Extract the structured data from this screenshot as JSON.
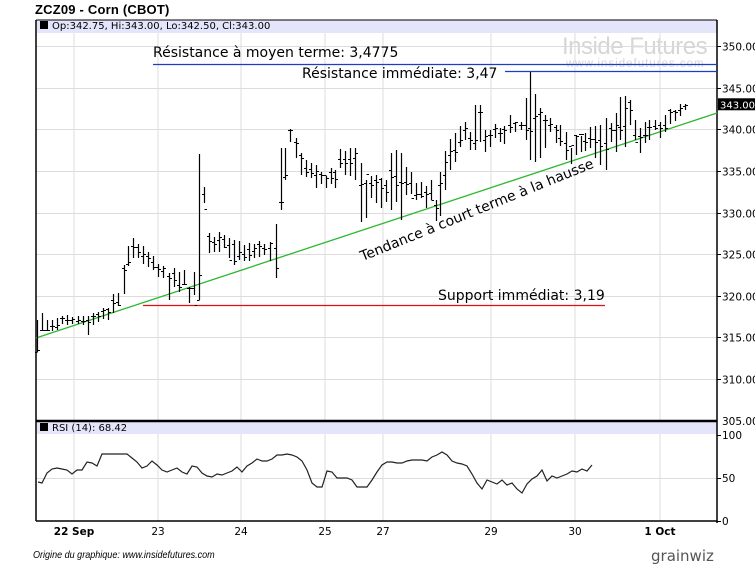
{
  "header": {
    "title": "ZCZ09 - Corn (CBOT)",
    "ohlc_label": "Op:342.75, Hi:343.00, Lo:342.50, Cl:343.00"
  },
  "watermark": {
    "brand": "Inside Futures",
    "url": "www.insidefutures.com"
  },
  "annotations": {
    "resistance_medium": "Résistance à moyen terme: 3,4775",
    "resistance_immediate": "Résistance immédiate: 3,47",
    "trend": "Tendance à court terme à la hausse",
    "support_immediate": "Support immédiat: 3,19"
  },
  "rsi": {
    "label": "RSI (14): 68.42"
  },
  "footer": {
    "source": "Origine du graphique: www.insidefutures.com",
    "logo": "grainwiz"
  },
  "colors": {
    "header_band": "#e4e4fb",
    "grid": "#dcdcdc",
    "resistance": "#1a3fc4",
    "support": "#e01010",
    "trend": "#2db82d",
    "bars": "#000000"
  },
  "chart_data": [
    {
      "type": "ohlc",
      "title": "ZCZ09 - Corn (CBOT)",
      "ylim": [
        305,
        352
      ],
      "yticks": [
        310,
        315,
        320,
        325,
        330,
        335,
        340,
        345,
        350
      ],
      "ytick_labels": [
        "310.00",
        "315.00",
        "320.00",
        "325.00",
        "330.00",
        "335.00",
        "340.00",
        "345.00",
        "350.00"
      ],
      "last_price_label": "343.00",
      "xtick_labels": [
        "22 Sep",
        "23",
        "24",
        "25",
        "27",
        "29",
        "30",
        "1 Oct"
      ],
      "grid": true,
      "last_bar": {
        "open": 342.75,
        "high": 343.0,
        "low": 342.5,
        "close": 343.0
      },
      "lines": [
        {
          "name": "Résistance à moyen terme",
          "value": 347.75,
          "color": "#1a3fc4"
        },
        {
          "name": "Résistance immédiate",
          "value": 347.0,
          "color": "#1a3fc4"
        },
        {
          "name": "Support immédiat",
          "value": 319.0,
          "color": "#e01010"
        },
        {
          "name": "Tendance à court terme à la hausse",
          "type": "trendline",
          "from": 311.5,
          "to": 341.5,
          "color": "#2db82d"
        }
      ]
    },
    {
      "type": "line",
      "title": "RSI (14): 68.42",
      "ylim": [
        0,
        100
      ],
      "yticks": [
        0,
        50,
        100
      ],
      "series": [
        {
          "name": "RSI (14)",
          "last": 68.42
        }
      ]
    }
  ]
}
